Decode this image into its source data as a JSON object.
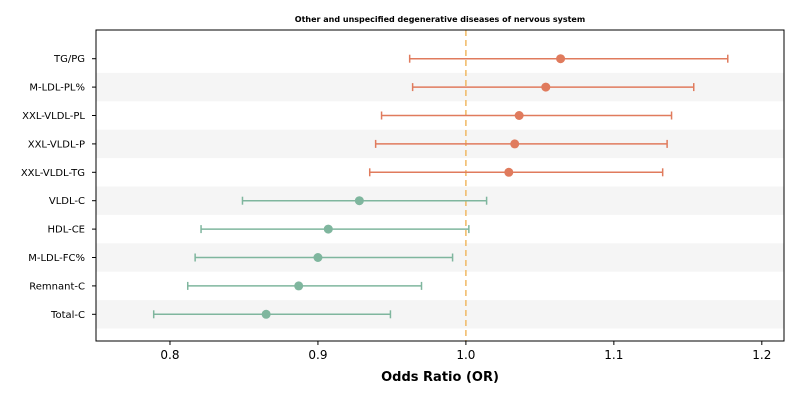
{
  "chart_data": {
    "type": "forest",
    "title": "Other and unspecified degenerative diseases of nervous system",
    "xlabel": "Odds Ratio (OR)",
    "xlim": [
      0.75,
      1.215
    ],
    "xticks": [
      "0.8",
      "0.9",
      "1.0",
      "1.1",
      "1.2"
    ],
    "reference_line": 1.0,
    "colors": {
      "risk": "#e07b5d",
      "protective": "#7fb69e",
      "reference": "#f0b963",
      "band": "#f5f5f5"
    },
    "rows": [
      {
        "label": "TG/PG",
        "or": 1.064,
        "lower": 0.962,
        "upper": 1.177
      },
      {
        "label": "M-LDL-PL%",
        "or": 1.054,
        "lower": 0.964,
        "upper": 1.154
      },
      {
        "label": "XXL-VLDL-PL",
        "or": 1.036,
        "lower": 0.943,
        "upper": 1.139
      },
      {
        "label": "XXL-VLDL-P",
        "or": 1.033,
        "lower": 0.939,
        "upper": 1.136
      },
      {
        "label": "XXL-VLDL-TG",
        "or": 1.029,
        "lower": 0.935,
        "upper": 1.133
      },
      {
        "label": "VLDL-C",
        "or": 0.928,
        "lower": 0.849,
        "upper": 1.014
      },
      {
        "label": "HDL-CE",
        "or": 0.907,
        "lower": 0.821,
        "upper": 1.002
      },
      {
        "label": "M-LDL-FC%",
        "or": 0.9,
        "lower": 0.817,
        "upper": 0.991
      },
      {
        "label": "Remnant-C",
        "or": 0.887,
        "lower": 0.812,
        "upper": 0.97
      },
      {
        "label": "Total-C",
        "or": 0.865,
        "lower": 0.789,
        "upper": 0.949
      }
    ]
  }
}
